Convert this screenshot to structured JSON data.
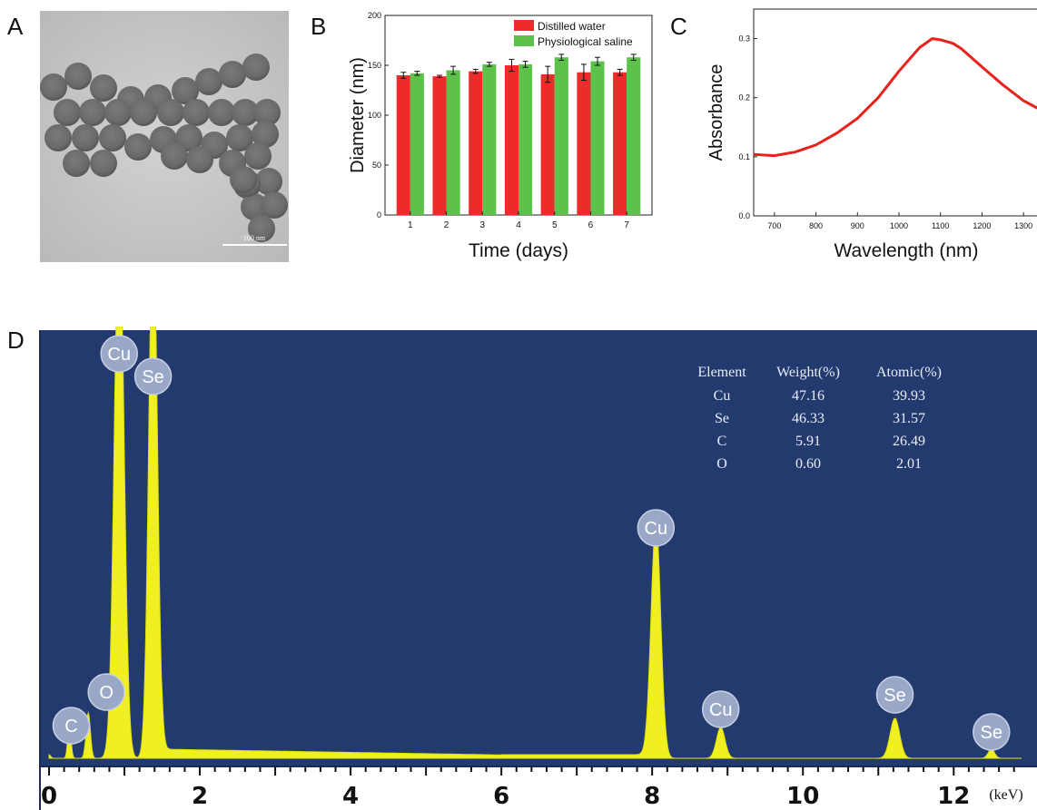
{
  "panel_letters": {
    "a": "A",
    "b": "B",
    "c": "C",
    "d": "D"
  },
  "panel_a": {
    "scale_bar_label": "100 nm"
  },
  "chart_data": [
    {
      "type": "bar",
      "categories": [
        "1",
        "2",
        "3",
        "4",
        "5",
        "6",
        "7"
      ],
      "series": [
        {
          "name": "Distilled water",
          "values": [
            140,
            139,
            144,
            150,
            141,
            143,
            143
          ],
          "errors": [
            3,
            1,
            2,
            6,
            8,
            8,
            3
          ],
          "color": "#ee2b2b"
        },
        {
          "name": "Physiological saline",
          "values": [
            142,
            145,
            151,
            151,
            158,
            154,
            158
          ],
          "errors": [
            2,
            4,
            2,
            3,
            3,
            4,
            3
          ],
          "color": "#5cc24c"
        }
      ],
      "xlabel": "Time (days)",
      "ylabel": "Diameter (nm)",
      "ylim": [
        0,
        200
      ],
      "yticks": [
        0,
        50,
        100,
        150,
        200
      ],
      "legend_position": "top-right"
    },
    {
      "type": "line",
      "x": [
        650,
        700,
        750,
        800,
        850,
        900,
        950,
        1000,
        1050,
        1080,
        1100,
        1130,
        1150,
        1200,
        1250,
        1300,
        1350
      ],
      "series": [
        {
          "values": [
            0.104,
            0.102,
            0.108,
            0.12,
            0.14,
            0.165,
            0.2,
            0.245,
            0.285,
            0.3,
            0.298,
            0.292,
            0.283,
            0.252,
            0.222,
            0.195,
            0.176
          ],
          "color": "#e8221c"
        }
      ],
      "xlabel": "Wavelength (nm)",
      "ylabel": "Absorbance",
      "xlim": [
        650,
        1350
      ],
      "ylim": [
        0,
        0.35
      ],
      "xticks": [
        700,
        800,
        900,
        1000,
        1100,
        1200,
        1300
      ],
      "yticks": [
        0.0,
        0.1,
        0.2,
        0.3
      ]
    },
    {
      "type": "area",
      "xlabel": "(keV)",
      "xlim": [
        0,
        12.9
      ],
      "xticks": [
        0,
        2,
        4,
        6,
        8,
        10,
        12
      ],
      "peaks": [
        {
          "label": "C",
          "x": 0.27
        },
        {
          "label": "O",
          "x": 0.52
        },
        {
          "label": "Cu",
          "x": 0.93
        },
        {
          "label": "Se",
          "x": 1.38
        },
        {
          "label": "Cu",
          "x": 8.05
        },
        {
          "label": "Cu",
          "x": 8.91
        },
        {
          "label": "Se",
          "x": 11.22
        },
        {
          "label": "Se",
          "x": 12.5
        }
      ],
      "table": {
        "headers": [
          "Element",
          "Weight(%)",
          "Atomic(%)"
        ],
        "rows": [
          [
            "Cu",
            "47.16",
            "39.93"
          ],
          [
            "Se",
            "46.33",
            "31.57"
          ],
          [
            "C",
            "5.91",
            "26.49"
          ],
          [
            "O",
            "0.60",
            "2.01"
          ]
        ]
      },
      "colors": {
        "background": "#233a6e",
        "spectrum": "#f0f020",
        "axis": "#1b2a5a"
      }
    }
  ]
}
